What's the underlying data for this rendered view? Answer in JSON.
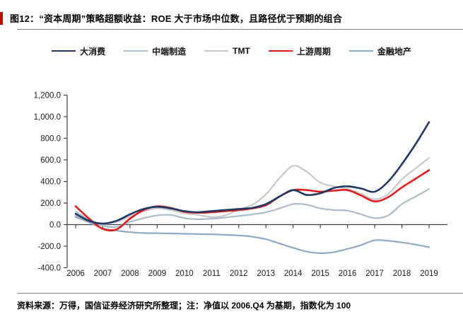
{
  "title": "图12：“资本周期”策略超额收益：ROE 大于市场中位数，且路径优于预期的组合",
  "footer": {
    "source_note": "资料来源：万得，国信证券经济研究所整理；注：净值以 2006.Q4 为基期，指数化为 100"
  },
  "accent_color": "#c00000",
  "chart_data": {
    "type": "line",
    "title": "",
    "xlabel": "",
    "ylabel": "",
    "note": "净值以 2006.Q4 为基期，指数化为 100",
    "legend_position": "top",
    "grid": false,
    "ylim": [
      -400,
      1200
    ],
    "y_ticks": [
      "1,200.0",
      "1,000.0",
      "800.0",
      "600.0",
      "400.0",
      "200.0",
      "0.0",
      "-200.0",
      "-400.0"
    ],
    "y_tick_values": [
      1200,
      1000,
      800,
      600,
      400,
      200,
      0,
      -200,
      -400
    ],
    "categories": [
      "2006",
      "2007",
      "2008",
      "2009",
      "2010",
      "2011",
      "2012",
      "2013",
      "2014",
      "2015",
      "2016",
      "2017",
      "2018",
      "2019"
    ],
    "x": [
      2006,
      2006.5,
      2007,
      2007.5,
      2008,
      2008.5,
      2009,
      2009.5,
      2010,
      2010.5,
      2011,
      2011.5,
      2012,
      2012.5,
      2013,
      2013.5,
      2014,
      2014.5,
      2015,
      2015.5,
      2016,
      2016.5,
      2017,
      2017.5,
      2018,
      2018.5,
      2019
    ],
    "series": [
      {
        "name": "大消费",
        "color": "#1f3864",
        "line_width": 2.6,
        "values": [
          100,
          35,
          10,
          35,
          95,
          145,
          165,
          150,
          125,
          115,
          125,
          135,
          145,
          155,
          190,
          260,
          320,
          275,
          290,
          340,
          355,
          335,
          305,
          400,
          560,
          745,
          950
        ]
      },
      {
        "name": "中端制造",
        "color": "#a8bccd",
        "line_width": 2.2,
        "values": [
          120,
          45,
          -10,
          -20,
          25,
          60,
          85,
          90,
          60,
          50,
          55,
          65,
          80,
          95,
          115,
          150,
          190,
          185,
          150,
          135,
          130,
          95,
          60,
          85,
          190,
          260,
          330
        ]
      },
      {
        "name": "TMT",
        "color": "#c8c8c8",
        "line_width": 2.2,
        "values": [
          85,
          25,
          5,
          25,
          75,
          125,
          150,
          135,
          105,
          90,
          70,
          85,
          140,
          185,
          280,
          430,
          545,
          490,
          390,
          355,
          330,
          285,
          235,
          285,
          420,
          520,
          620
        ]
      },
      {
        "name": "上游周期",
        "color": "#e11b1e",
        "line_width": 2.6,
        "values": [
          170,
          55,
          -40,
          -45,
          55,
          135,
          170,
          155,
          120,
          110,
          115,
          125,
          135,
          150,
          180,
          260,
          320,
          320,
          305,
          315,
          320,
          270,
          215,
          255,
          345,
          425,
          505
        ]
      },
      {
        "name": "金融地产",
        "color": "#8fa9c4",
        "line_width": 2.2,
        "values": [
          70,
          20,
          -35,
          -55,
          -70,
          -78,
          -80,
          -82,
          -85,
          -88,
          -90,
          -95,
          -100,
          -112,
          -135,
          -175,
          -215,
          -250,
          -265,
          -255,
          -225,
          -190,
          -145,
          -150,
          -165,
          -185,
          -210
        ]
      }
    ]
  }
}
